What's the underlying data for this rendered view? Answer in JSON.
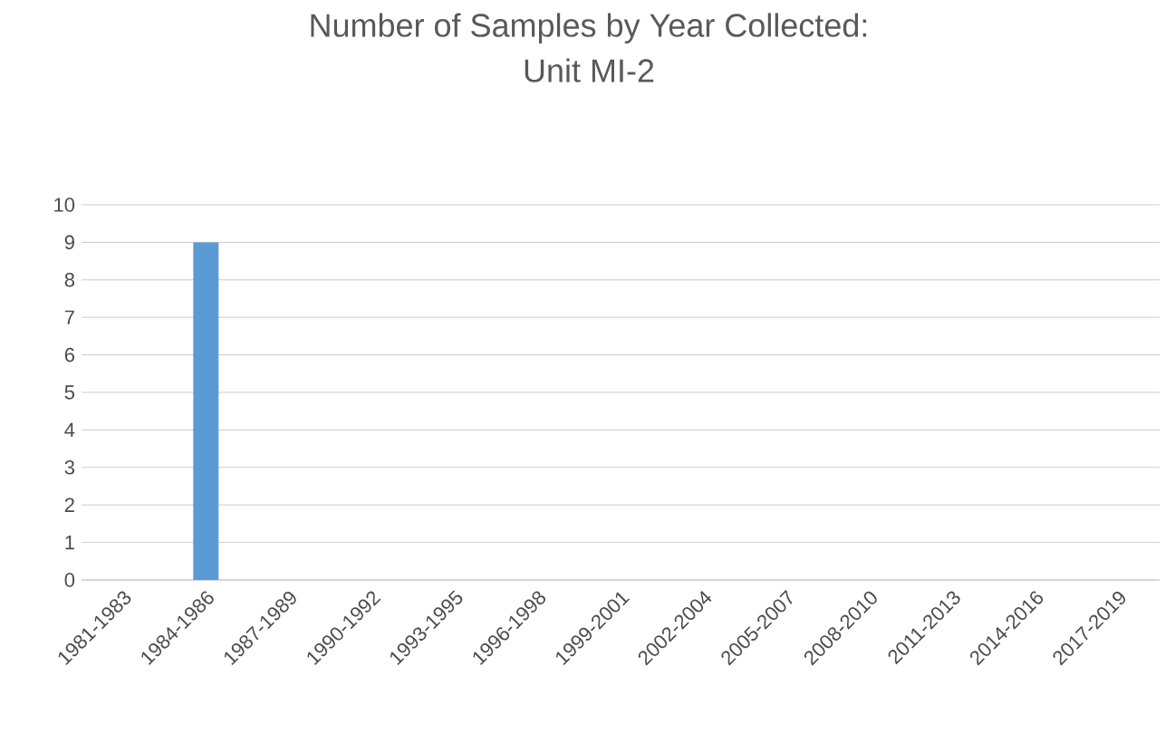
{
  "chart_data": {
    "type": "bar",
    "title": "Number of Samples by Year Collected:\nUnit MI-2",
    "categories": [
      "1981-1983",
      "1984-1986",
      "1987-1989",
      "1990-1992",
      "1993-1995",
      "1996-1998",
      "1999-2001",
      "2002-2004",
      "2005-2007",
      "2008-2010",
      "2011-2013",
      "2014-2016",
      "2017-2019"
    ],
    "values": [
      0,
      9,
      0,
      0,
      0,
      0,
      0,
      0,
      0,
      0,
      0,
      0,
      0
    ],
    "color": "#5b9bd5",
    "ylim": [
      0,
      10
    ],
    "yticks": [
      0,
      1,
      2,
      3,
      4,
      5,
      6,
      7,
      8,
      9,
      10
    ],
    "grid": "y"
  }
}
